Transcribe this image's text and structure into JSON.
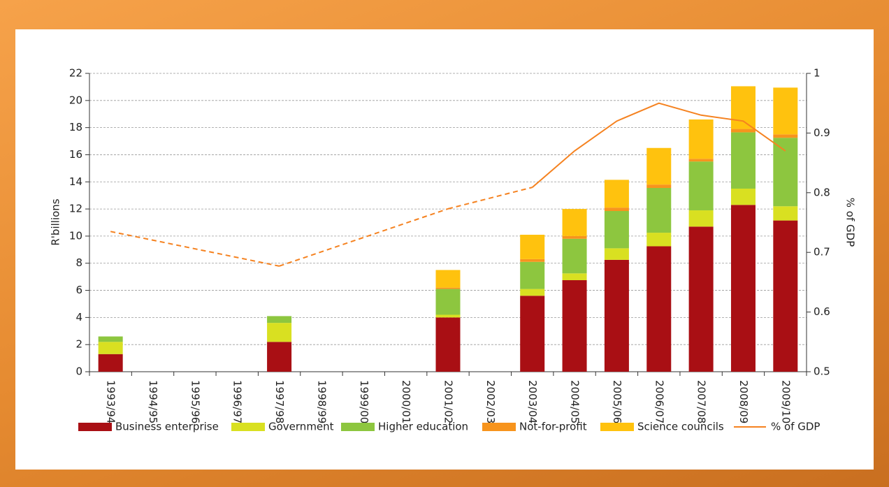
{
  "chart_data": {
    "type": "bar",
    "stacked": true,
    "categories": [
      "1993/94",
      "1994/95",
      "1995/96",
      "1996/97",
      "1997/98",
      "1998/99",
      "1999/00",
      "2000/01",
      "2001/02",
      "2002/03",
      "2003/04",
      "2004/05",
      "2005/06",
      "2006/07",
      "2007/08",
      "2008/09",
      "2009/10"
    ],
    "y_label": "R'billions",
    "y2_label": "% of GDP",
    "ylim": [
      0,
      22
    ],
    "yticks": [
      0,
      2,
      4,
      6,
      8,
      10,
      12,
      14,
      16,
      18,
      20,
      22
    ],
    "y2lim": [
      0.5,
      1
    ],
    "y2ticks": [
      0.5,
      0.6,
      0.7,
      0.8,
      0.9,
      1
    ],
    "grid": true,
    "legend": "bottom",
    "series": [
      {
        "name": "Business enterprise",
        "color": "#a90f14",
        "values": [
          1.3,
          null,
          null,
          null,
          2.2,
          null,
          null,
          null,
          4.0,
          null,
          5.6,
          6.75,
          8.25,
          9.25,
          10.7,
          12.3,
          11.15
        ]
      },
      {
        "name": "Government",
        "color": "#d9e021",
        "values": [
          0.9,
          null,
          null,
          null,
          1.4,
          null,
          null,
          null,
          0.2,
          null,
          0.5,
          0.5,
          0.85,
          1.0,
          1.2,
          1.2,
          1.05
        ]
      },
      {
        "name": "Higher education",
        "color": "#8dc63f",
        "values": [
          0.4,
          null,
          null,
          null,
          0.5,
          null,
          null,
          null,
          1.9,
          null,
          2.0,
          2.55,
          2.75,
          3.3,
          3.6,
          4.15,
          5.05
        ]
      },
      {
        "name": "Not-for-profit",
        "color": "#f7941d",
        "values": [
          0,
          null,
          null,
          null,
          0,
          null,
          null,
          null,
          0.1,
          null,
          0.2,
          0.2,
          0.25,
          0.25,
          0.2,
          0.25,
          0.25
        ]
      },
      {
        "name": "Science councils",
        "color": "#ffc20e",
        "values": [
          0,
          null,
          null,
          null,
          0,
          null,
          null,
          null,
          1.3,
          null,
          1.8,
          2.0,
          2.05,
          2.7,
          2.9,
          3.15,
          3.45
        ]
      },
      {
        "name": "% of GDP",
        "color": "#f58220",
        "type": "line",
        "axis": "y2",
        "values": [
          0.735,
          null,
          null,
          null,
          0.677,
          null,
          null,
          null,
          0.773,
          null,
          0.809,
          0.87,
          0.92,
          0.95,
          0.93,
          0.92,
          0.87
        ]
      }
    ]
  }
}
